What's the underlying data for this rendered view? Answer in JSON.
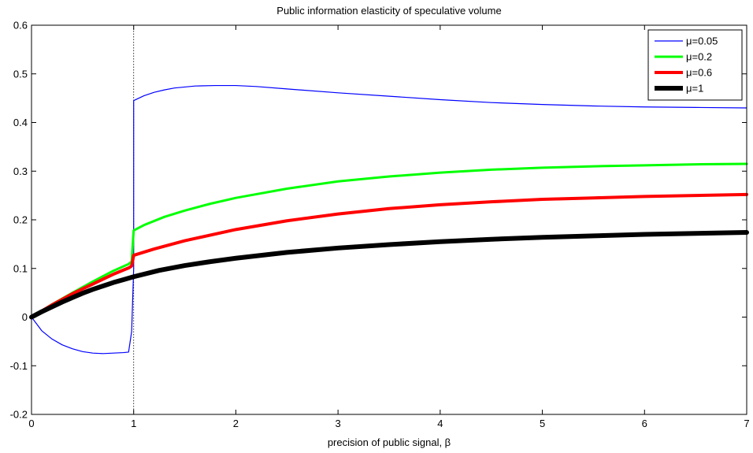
{
  "chart_data": {
    "type": "line",
    "title": "Public information elasticity of speculative volume",
    "xlabel": "precision of public signal, β",
    "ylabel": "",
    "xlim": [
      0,
      7
    ],
    "ylim": [
      -0.2,
      0.6
    ],
    "xticks": [
      0,
      1,
      2,
      3,
      4,
      5,
      6,
      7
    ],
    "yticks": [
      -0.2,
      -0.1,
      0,
      0.1,
      0.2,
      0.3,
      0.4,
      0.5,
      0.6
    ],
    "xtick_labels": [
      "0",
      "1",
      "2",
      "3",
      "4",
      "5",
      "6",
      "7"
    ],
    "ytick_labels": [
      "-0.2",
      "-0.1",
      "0",
      "0.1",
      "0.2",
      "0.3",
      "0.4",
      "0.5",
      "0.6"
    ],
    "grid": false,
    "legend_position": "top-right",
    "reference_line": {
      "x": 1,
      "style": "dotted"
    },
    "series": [
      {
        "name": "μ=0.05",
        "color": "#0000ff",
        "x": [
          0,
          0.1,
          0.2,
          0.3,
          0.4,
          0.5,
          0.6,
          0.7,
          0.8,
          0.9,
          0.95,
          0.98,
          1.0,
          1.0,
          1.1,
          1.2,
          1.3,
          1.4,
          1.5,
          1.6,
          1.8,
          2.0,
          2.2,
          2.5,
          3.0,
          3.5,
          4.0,
          4.5,
          5.0,
          5.5,
          6.0,
          6.5,
          7.0
        ],
        "y": [
          0,
          -0.028,
          -0.045,
          -0.057,
          -0.065,
          -0.071,
          -0.074,
          -0.075,
          -0.074,
          -0.073,
          -0.072,
          -0.03,
          0.1,
          0.445,
          0.455,
          0.462,
          0.467,
          0.471,
          0.473,
          0.475,
          0.476,
          0.476,
          0.474,
          0.469,
          0.461,
          0.454,
          0.447,
          0.441,
          0.437,
          0.434,
          0.432,
          0.431,
          0.43
        ]
      },
      {
        "name": "μ=0.2",
        "color": "#00ff00",
        "x": [
          0,
          0.2,
          0.4,
          0.6,
          0.8,
          0.95,
          0.98,
          1.0,
          1.1,
          1.3,
          1.5,
          1.75,
          2.0,
          2.5,
          3.0,
          3.5,
          4.0,
          4.5,
          5.0,
          5.5,
          6.0,
          6.5,
          7.0
        ],
        "y": [
          0,
          0.026,
          0.05,
          0.073,
          0.095,
          0.109,
          0.114,
          0.178,
          0.189,
          0.206,
          0.219,
          0.233,
          0.245,
          0.264,
          0.279,
          0.289,
          0.297,
          0.303,
          0.307,
          0.31,
          0.312,
          0.314,
          0.315
        ]
      },
      {
        "name": "μ=0.6",
        "color": "#ff0000",
        "x": [
          0,
          0.2,
          0.4,
          0.6,
          0.8,
          0.95,
          0.98,
          1.0,
          1.2,
          1.5,
          2.0,
          2.5,
          3.0,
          3.5,
          4.0,
          4.5,
          5.0,
          5.5,
          6.0,
          6.5,
          7.0
        ],
        "y": [
          0,
          0.025,
          0.048,
          0.068,
          0.088,
          0.101,
          0.105,
          0.127,
          0.14,
          0.157,
          0.18,
          0.198,
          0.212,
          0.223,
          0.231,
          0.237,
          0.242,
          0.245,
          0.248,
          0.25,
          0.252
        ]
      },
      {
        "name": "μ=1",
        "color": "#000000",
        "x": [
          0,
          0.1,
          0.2,
          0.3,
          0.4,
          0.5,
          0.6,
          0.7,
          0.8,
          0.9,
          1.0,
          1.25,
          1.5,
          1.75,
          2.0,
          2.5,
          3.0,
          3.5,
          4.0,
          4.5,
          5.0,
          5.5,
          6.0,
          6.5,
          7.0
        ],
        "y": [
          0,
          0.011,
          0.021,
          0.031,
          0.04,
          0.049,
          0.057,
          0.064,
          0.071,
          0.077,
          0.083,
          0.096,
          0.106,
          0.114,
          0.121,
          0.133,
          0.142,
          0.149,
          0.155,
          0.16,
          0.164,
          0.167,
          0.17,
          0.172,
          0.174
        ]
      }
    ]
  }
}
